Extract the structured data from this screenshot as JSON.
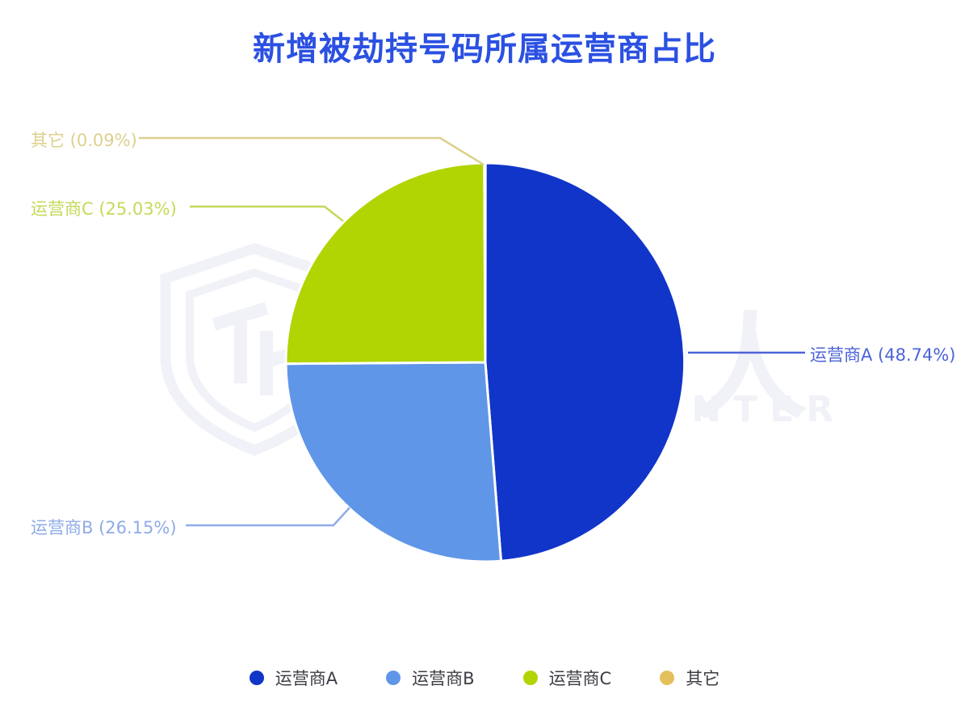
{
  "title": "新增被劫持号码所属运营商占比",
  "watermark": {
    "cjk_text": "威胁猎人",
    "latin_text": "THREAT HUNTER",
    "shield_icon": "shield-logo-watermark",
    "color": "#f0f2f7"
  },
  "chart_data": {
    "type": "pie",
    "title": "新增被劫持号码所属运营商占比",
    "start_angle": "12-o-clock",
    "direction": "clockwise",
    "legend_position": "bottom",
    "series": [
      {
        "key": "a",
        "name": "运营商A",
        "value_pct": 48.74,
        "color": "#1135c8",
        "label": "运营商A (48.74%)",
        "label_color": "#4c63d8"
      },
      {
        "key": "b",
        "name": "运营商B",
        "value_pct": 26.15,
        "color": "#6096e8",
        "label": "运营商B (26.15%)",
        "label_color": "#8fabe8"
      },
      {
        "key": "c",
        "name": "运营商C",
        "value_pct": 25.03,
        "color": "#b1d403",
        "label": "运营商C (25.03%)",
        "label_color": "#c3da58"
      },
      {
        "key": "other",
        "name": "其它",
        "value_pct": 0.09,
        "color": "#e4c05c",
        "label": "其它 (0.09%)",
        "label_color": "#ddd08d"
      }
    ]
  }
}
